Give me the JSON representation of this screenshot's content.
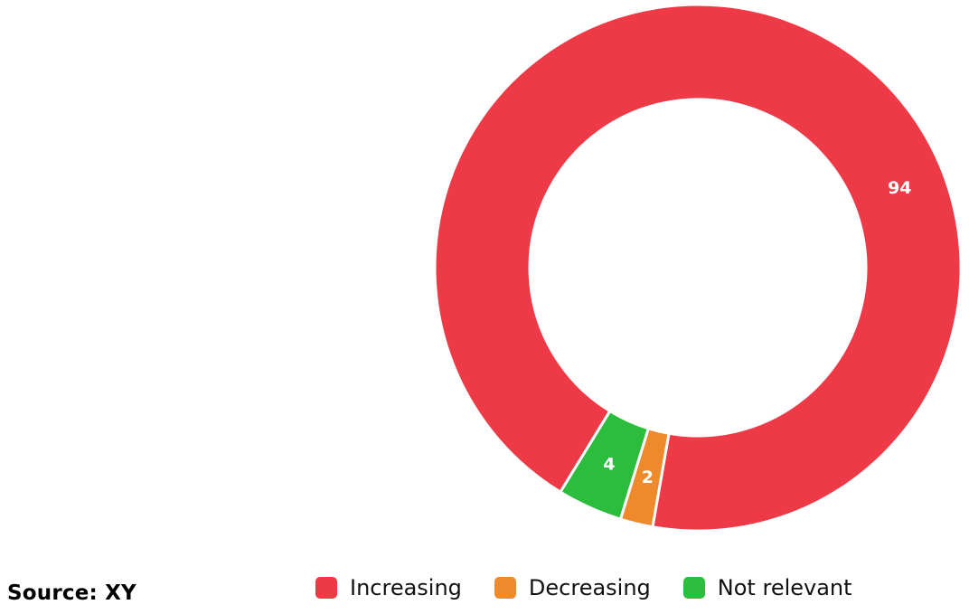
{
  "chart_data": {
    "type": "pie",
    "variant": "donut",
    "categories": [
      "Increasing",
      "Decreasing",
      "Not relevant"
    ],
    "values": [
      94,
      2,
      4
    ],
    "colors": [
      "#ee3a47",
      "#ee8a2c",
      "#2dbd3e"
    ],
    "data_labels": [
      "94",
      "2",
      "4"
    ],
    "legend_position": "bottom"
  },
  "source": "Source: XY"
}
